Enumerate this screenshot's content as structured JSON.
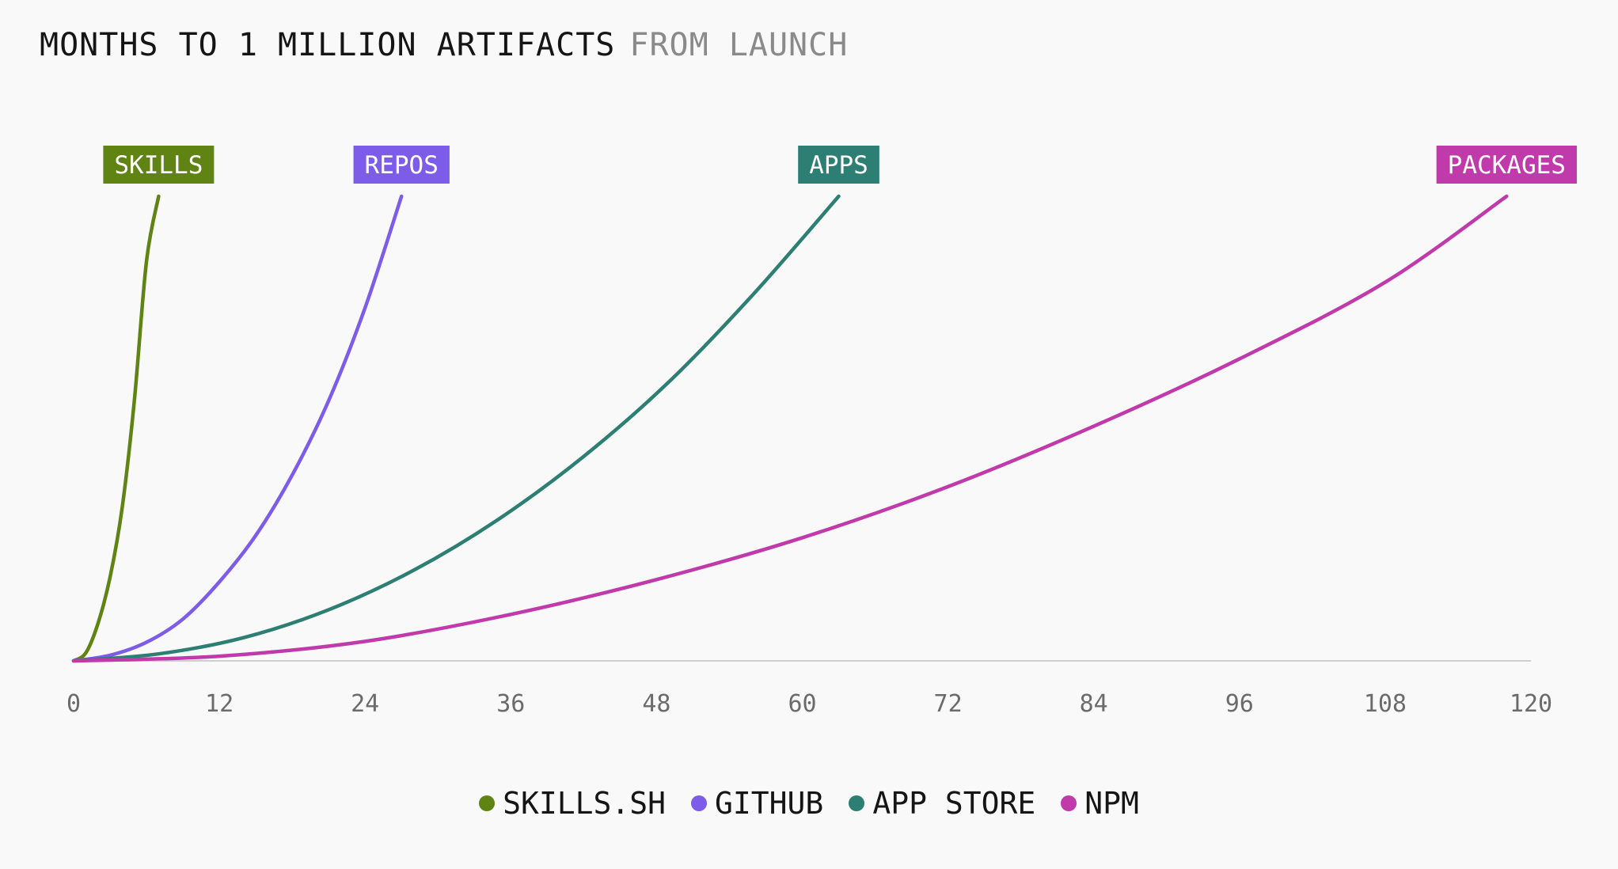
{
  "title": {
    "main": "MONTHS TO 1 MILLION ARTIFACTS",
    "sub": "FROM LAUNCH"
  },
  "chart_data": {
    "type": "line",
    "x_ticks": [
      0,
      12,
      24,
      36,
      48,
      60,
      72,
      84,
      96,
      108,
      120
    ],
    "xlim": [
      0,
      120
    ],
    "ylim": [
      0,
      1000000
    ],
    "x_axis_line": true,
    "y_axis_visible": false,
    "grid": false,
    "legend_position": "bottom-center",
    "series": [
      {
        "name": "SKILLS.SH",
        "end_label": "SKILLS",
        "color": "#5f8414",
        "x": [
          0,
          1,
          2,
          3,
          4,
          5,
          6,
          7
        ],
        "y": [
          0,
          17000,
          80000,
          180000,
          330000,
          560000,
          860000,
          1000000
        ]
      },
      {
        "name": "GITHUB",
        "end_label": "REPOS",
        "color": "#7c5ce8",
        "x": [
          0,
          3,
          6,
          9,
          12,
          15,
          18,
          21,
          24,
          27
        ],
        "y": [
          0,
          12000,
          40000,
          90000,
          170000,
          270000,
          400000,
          560000,
          760000,
          1000000
        ]
      },
      {
        "name": "APP STORE",
        "end_label": "APPS",
        "color": "#2c7f72",
        "x": [
          0,
          7,
          14,
          21,
          28,
          35,
          42,
          49,
          56,
          63
        ],
        "y": [
          0,
          15000,
          50000,
          110000,
          195000,
          305000,
          440000,
          600000,
          790000,
          1000000
        ]
      },
      {
        "name": "NPM",
        "end_label": "PACKAGES",
        "color": "#c03aab",
        "x": [
          0,
          12,
          24,
          36,
          48,
          60,
          72,
          84,
          96,
          108,
          118
        ],
        "y": [
          0,
          10000,
          42000,
          100000,
          175000,
          265000,
          375000,
          505000,
          650000,
          815000,
          1000000
        ]
      }
    ]
  }
}
